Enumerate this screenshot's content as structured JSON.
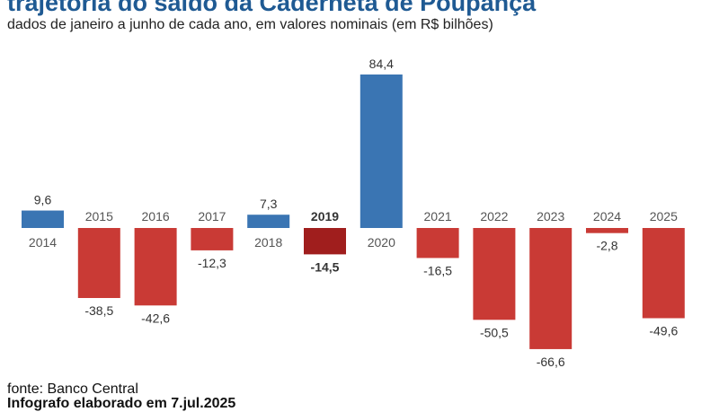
{
  "title": "trajetória do saldo da Caderneta de Poupança",
  "subtitle": "dados de janeiro a junho de cada ano, em valores nominais (em R$ bilhões)",
  "footer": {
    "source": "fonte: Banco Central",
    "credit": "Infografo elaborado em 7.jul.2025"
  },
  "colors": {
    "positive": "#3a75b3",
    "negative": "#c93a35",
    "highlight": "#a01e1d",
    "title": "#1f5a93",
    "category_label": "#555555",
    "value_label": "#333333"
  },
  "chart_data": {
    "type": "bar",
    "title": "trajetória do saldo da Caderneta de Poupança",
    "subtitle": "dados de janeiro a junho de cada ano, em valores nominais (em R$ bilhões)",
    "xlabel": "",
    "ylabel": "",
    "categories": [
      "2014",
      "2015",
      "2016",
      "2017",
      "2018",
      "2019",
      "2020",
      "2021",
      "2022",
      "2023",
      "2024",
      "2025"
    ],
    "values": [
      9.6,
      -38.5,
      -42.6,
      -12.3,
      7.3,
      -14.5,
      84.4,
      -16.5,
      -50.5,
      -66.6,
      -2.8,
      -49.6
    ],
    "value_labels": [
      "9,6",
      "-38,5",
      "-42,6",
      "-12,3",
      "7,3",
      "-14,5",
      "84,4",
      "-16,5",
      "-50,5",
      "-66,6",
      "-2,8",
      "-49,6"
    ],
    "highlight_category": "2019",
    "ylim": [
      -66.6,
      84.4
    ],
    "grid": false,
    "legend": "none"
  }
}
